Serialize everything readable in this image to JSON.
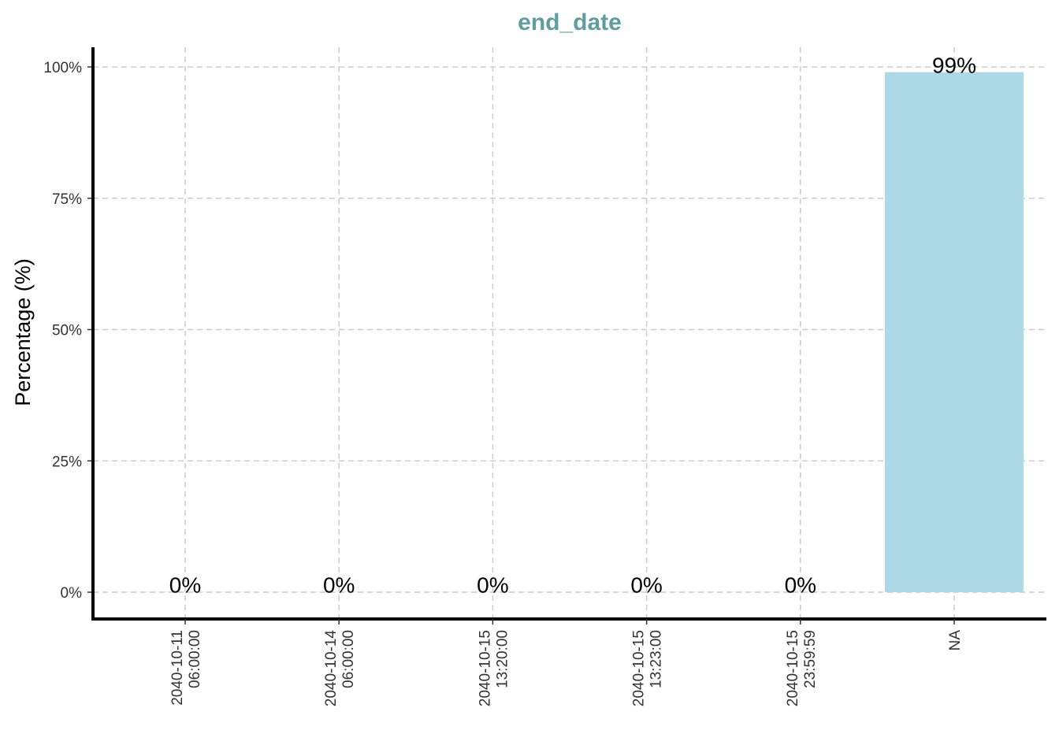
{
  "chart_data": {
    "type": "bar",
    "title": "end_date",
    "xlabel": "",
    "ylabel": "Percentage (%)",
    "categories": [
      [
        "2040-10-11",
        "06:00:00"
      ],
      [
        "2040-10-14",
        "06:00:00"
      ],
      [
        "2040-10-15",
        "13:20:00"
      ],
      [
        "2040-10-15",
        "13:23:00"
      ],
      [
        "2040-10-15",
        "23:59:59"
      ],
      [
        "NA"
      ]
    ],
    "values": [
      0.05,
      0.05,
      0.05,
      0.05,
      0.05,
      99
    ],
    "data_labels": [
      "0%",
      "0%",
      "0%",
      "0%",
      "0%",
      "99%"
    ],
    "y_ticks": [
      0,
      25,
      50,
      75,
      100
    ],
    "y_tick_labels": [
      "0%",
      "25%",
      "50%",
      "75%",
      "100%"
    ],
    "ylim": [
      -5,
      104
    ],
    "grid": true,
    "colors": {
      "bar": "#add8e6",
      "title": "#5f9ea0"
    }
  }
}
